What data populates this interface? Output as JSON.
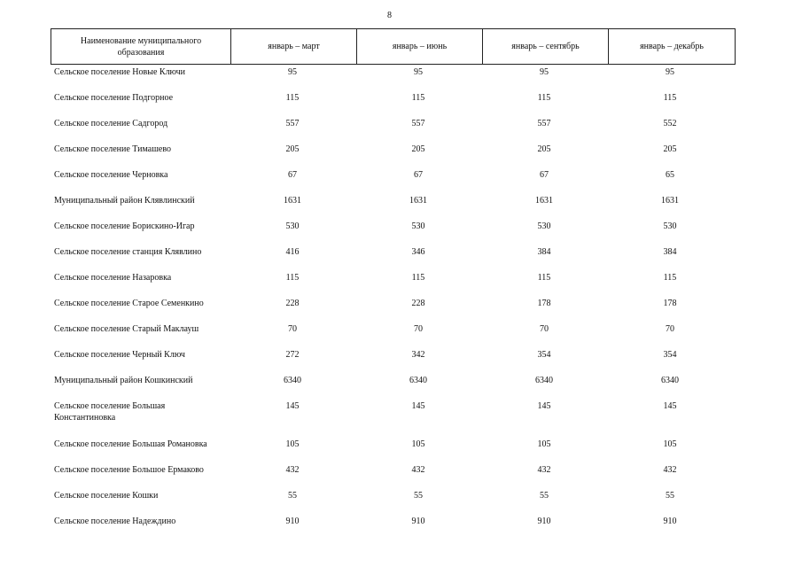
{
  "page_number": "8",
  "table": {
    "header": [
      "Наименование муниципального\nобразования",
      "январь – март",
      "январь – июнь",
      "январь – сентябрь",
      "январь – декабрь"
    ],
    "rows": [
      [
        "Сельское поселение Новые Ключи",
        95,
        95,
        95,
        95
      ],
      [
        "Сельское поселение Подгорное",
        115,
        115,
        115,
        115
      ],
      [
        "Сельское поселение Садгород",
        557,
        557,
        557,
        552
      ],
      [
        "Сельское поселение Тимашево",
        205,
        205,
        205,
        205
      ],
      [
        "Сельское поселение Черновка",
        67,
        67,
        67,
        65
      ],
      [
        "Муниципальный район Клявлинский",
        1631,
        1631,
        1631,
        1631
      ],
      [
        "Сельское поселение Борискино-Игар",
        530,
        530,
        530,
        530
      ],
      [
        "Сельское поселение станция Клявлино",
        416,
        346,
        384,
        384
      ],
      [
        "Сельское поселение Назаровка",
        115,
        115,
        115,
        115
      ],
      [
        "Сельское поселение Старое Семенкино",
        228,
        228,
        178,
        178
      ],
      [
        "Сельское поселение Старый Маклауш",
        70,
        70,
        70,
        70
      ],
      [
        "Сельское поселение Черный Ключ",
        272,
        342,
        354,
        354
      ],
      [
        "Муниципальный район Кошкинский",
        6340,
        6340,
        6340,
        6340
      ],
      [
        "Сельское поселение Большая\nКонстантиновка",
        145,
        145,
        145,
        145
      ],
      [
        "Сельское поселение Большая Романовка",
        105,
        105,
        105,
        105
      ],
      [
        "Сельское поселение Большое Ермаково",
        432,
        432,
        432,
        432
      ],
      [
        "Сельское поселение Кошки",
        55,
        55,
        55,
        55
      ],
      [
        "Сельское поселение Надеждино",
        910,
        910,
        910,
        910
      ]
    ]
  }
}
